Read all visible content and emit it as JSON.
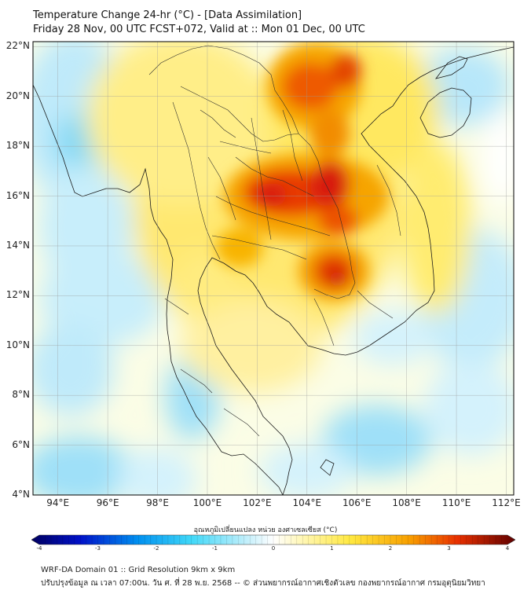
{
  "header": {
    "line1": "Temperature Change 24-hr (°C) - [Data Assimilation]",
    "line2": "Friday 28 Nov, 00 UTC FCST+072, Valid at :: Mon 01 Dec, 00 UTC"
  },
  "map": {
    "lat_ticks": [
      {
        "label": "22°N",
        "value": 22
      },
      {
        "label": "20°N",
        "value": 20
      },
      {
        "label": "18°N",
        "value": 18
      },
      {
        "label": "16°N",
        "value": 16
      },
      {
        "label": "14°N",
        "value": 14
      },
      {
        "label": "12°N",
        "value": 12
      },
      {
        "label": "10°N",
        "value": 10
      },
      {
        "label": "8°N",
        "value": 8
      },
      {
        "label": "6°N",
        "value": 6
      },
      {
        "label": "4°N",
        "value": 4
      }
    ],
    "lon_ticks": [
      {
        "label": "94°E",
        "value": 94
      },
      {
        "label": "96°E",
        "value": 96
      },
      {
        "label": "98°E",
        "value": 98
      },
      {
        "label": "100°E",
        "value": 100
      },
      {
        "label": "102°E",
        "value": 102
      },
      {
        "label": "104°E",
        "value": 104
      },
      {
        "label": "106°E",
        "value": 106
      },
      {
        "label": "108°E",
        "value": 108
      },
      {
        "label": "110°E",
        "value": 110
      },
      {
        "label": "112°E",
        "value": 112
      }
    ],
    "lon_range": [
      93,
      112.3
    ],
    "lat_range": [
      4,
      22.2
    ],
    "grid": true,
    "colors": {
      "warm_max": "#cc1010",
      "warm_mid": "#f5a000",
      "warm_low": "#ffe840",
      "neutral": "#ffffff",
      "cool_low": "#bde9f9",
      "cool_mid": "#5fd0f2"
    }
  },
  "colorbar": {
    "title": "อุณหภูมิเปลี่ยนแปลง หน่วย องศาเซลเซียส (°C)",
    "ticks": [
      "-4",
      "-3",
      "-2",
      "-1",
      "0",
      "1",
      "2",
      "3",
      "4"
    ],
    "range": [
      -4,
      4
    ]
  },
  "footer": {
    "line1": "WRF-DA Domain 01 :: Grid Resolution 9km x 9km",
    "line2": "ปรับปรุงข้อมูล ณ เวลา 07:00น. วัน ศ. ที่ 28 พ.ย. 2568 -- © ส่วนพยากรณ์อากาศเชิงตัวเลข กองพยากรณ์อากาศ กรมอุตุนิยมวิทยา"
  }
}
